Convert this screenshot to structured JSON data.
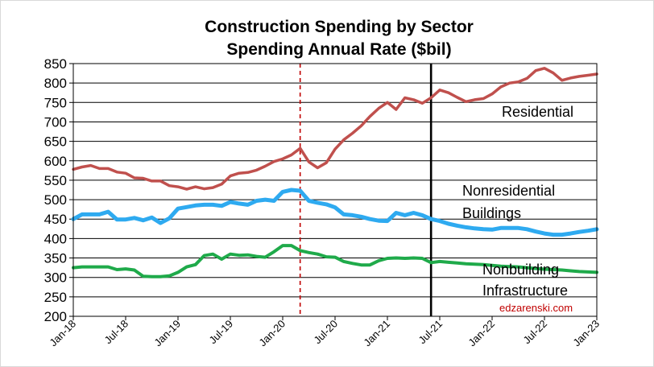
{
  "chart_data": {
    "type": "line",
    "title": "Construction Spending by Sector",
    "subtitle": "Spending Annual Rate ($bil)",
    "xlabel": "",
    "ylabel": "",
    "ylim": [
      200,
      850
    ],
    "yticks": [
      200,
      250,
      300,
      350,
      400,
      450,
      500,
      550,
      600,
      650,
      700,
      750,
      800,
      850
    ],
    "x_tick_labels": [
      "Jan-18",
      "Jul-18",
      "Jan-19",
      "Jul-19",
      "Jan-20",
      "Jul-20",
      "Jan-21",
      "Jul-21",
      "Jan-22",
      "Jul-22",
      "Jan-23"
    ],
    "grid": true,
    "legend": "none",
    "series": [
      {
        "label": "Residential",
        "color": "#c0504d",
        "values": [
          578,
          584,
          588,
          580,
          580,
          571,
          568,
          556,
          555,
          548,
          548,
          536,
          533,
          527,
          533,
          528,
          531,
          540,
          561,
          568,
          570,
          576,
          586,
          598,
          605,
          615,
          632,
          597,
          582,
          595,
          630,
          654,
          671,
          690,
          714,
          735,
          750,
          732,
          762,
          757,
          748,
          762,
          782,
          775,
          763,
          752,
          757,
          760,
          772,
          790,
          800,
          803,
          812,
          832,
          838,
          826,
          807,
          813,
          817,
          820,
          823
        ]
      },
      {
        "label": "Nonresidential Buildings",
        "color": "#2eaaf0",
        "values": [
          450,
          462,
          462,
          462,
          469,
          449,
          449,
          453,
          447,
          454,
          440,
          452,
          477,
          481,
          485,
          487,
          487,
          484,
          494,
          490,
          487,
          497,
          500,
          497,
          520,
          525,
          523,
          497,
          492,
          488,
          480,
          462,
          460,
          456,
          450,
          446,
          445,
          466,
          460,
          466,
          460,
          450,
          445,
          438,
          433,
          429,
          426,
          424,
          423,
          427,
          427,
          427,
          424,
          418,
          413,
          410,
          410,
          413,
          417,
          420,
          424
        ]
      },
      {
        "label": "Nonbuilding Infrastructure",
        "color": "#1faa4a",
        "values": [
          325,
          327,
          327,
          327,
          327,
          320,
          322,
          319,
          303,
          302,
          302,
          304,
          313,
          327,
          333,
          356,
          360,
          347,
          360,
          357,
          358,
          354,
          352,
          366,
          382,
          382,
          369,
          364,
          360,
          353,
          352,
          341,
          336,
          332,
          332,
          343,
          349,
          350,
          349,
          350,
          349,
          338,
          341,
          339,
          337,
          335,
          334,
          333,
          331,
          329,
          328,
          327,
          325,
          323,
          321,
          320,
          319,
          317,
          315,
          314,
          313
        ]
      }
    ],
    "annotations": [
      {
        "text": "Residential"
      },
      {
        "text": "Nonresidential"
      },
      {
        "text": "Buildings"
      },
      {
        "text": "Nonbuilding"
      },
      {
        "text": "Infrastructure"
      }
    ],
    "reference_lines": [
      {
        "at_label": "Mar-20",
        "index": 26,
        "color": "#c00000",
        "style": "dashed"
      },
      {
        "at_label": "Jun-21",
        "index": 41,
        "color": "#000000",
        "style": "solid"
      }
    ],
    "credit": "edzarenski.com"
  }
}
